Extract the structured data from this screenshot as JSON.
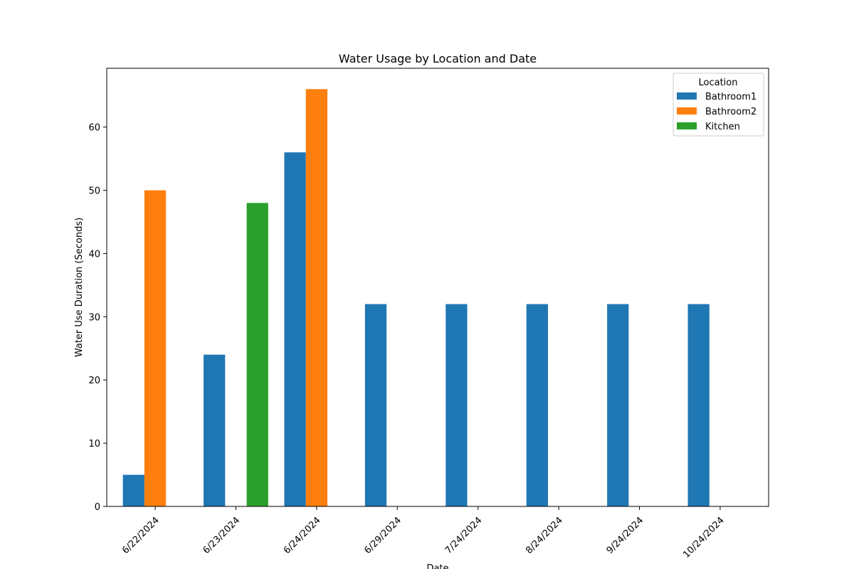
{
  "chart_data": {
    "type": "bar",
    "title": "Water Usage by Location and Date",
    "xlabel": "Date",
    "ylabel": "Water Use Duration (Seconds)",
    "categories": [
      "6/22/2024",
      "6/23/2024",
      "6/24/2024",
      "6/29/2024",
      "7/24/2024",
      "8/24/2024",
      "9/24/2024",
      "10/24/2024"
    ],
    "series": [
      {
        "name": "Bathroom1",
        "color": "#1f77b4",
        "values": [
          5,
          24,
          56,
          32,
          32,
          32,
          32,
          32
        ]
      },
      {
        "name": "Bathroom2",
        "color": "#ff7f0e",
        "values": [
          50,
          0,
          66,
          0,
          0,
          0,
          0,
          0
        ]
      },
      {
        "name": "Kitchen",
        "color": "#2ca02c",
        "values": [
          0,
          48,
          0,
          0,
          0,
          0,
          0,
          0
        ]
      }
    ],
    "ylim": [
      0,
      69.3
    ],
    "yticks": [
      0,
      10,
      20,
      30,
      40,
      50,
      60
    ],
    "legend": {
      "title": "Location",
      "placement": "top-right"
    },
    "grid": false
  }
}
